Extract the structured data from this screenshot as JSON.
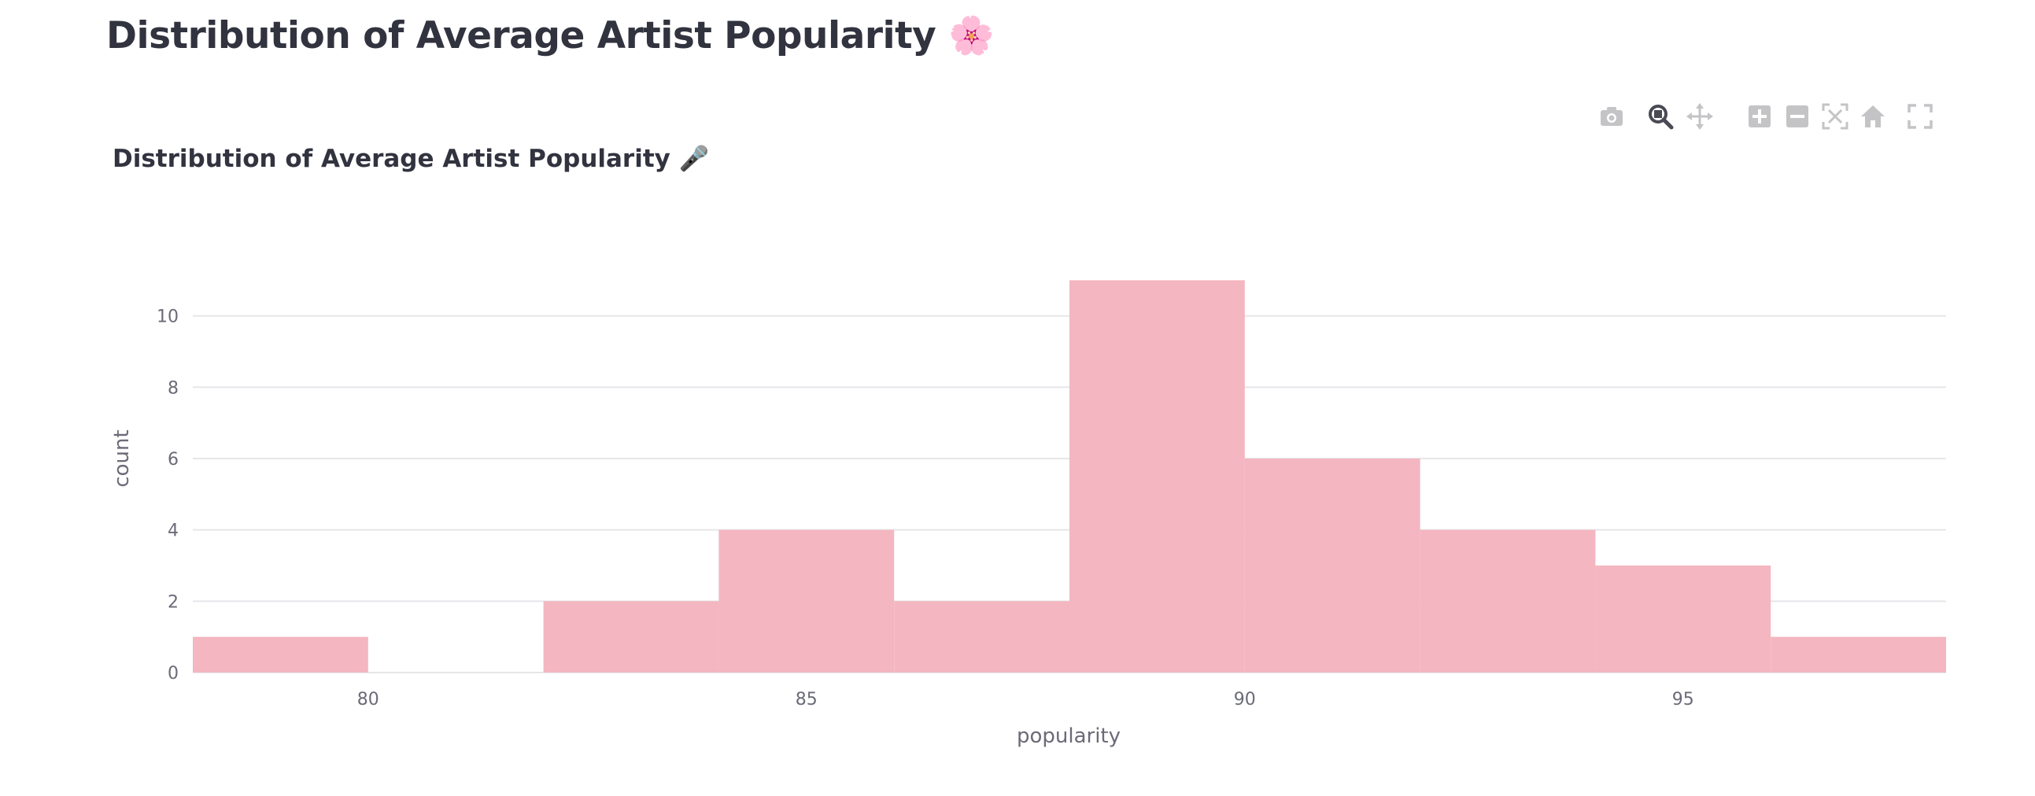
{
  "page": {
    "title": "Distribution of Average Artist Popularity 🌸"
  },
  "modebar": {
    "buttons": [
      {
        "name": "camera-icon",
        "label": "Download plot as a png"
      },
      {
        "name": "zoom-icon",
        "label": "Zoom"
      },
      {
        "name": "pan-icon",
        "label": "Pan"
      },
      {
        "name": "zoom-in-icon",
        "label": "Zoom in"
      },
      {
        "name": "zoom-out-icon",
        "label": "Zoom out"
      },
      {
        "name": "autoscale-icon",
        "label": "Autoscale"
      },
      {
        "name": "home-icon",
        "label": "Reset axes"
      },
      {
        "name": "fullscreen-icon",
        "label": "Fullscreen"
      }
    ],
    "active": "zoom-icon"
  },
  "chart_data": {
    "type": "bar",
    "title": "Distribution of Average Artist Popularity 🎤",
    "xlabel": "popularity",
    "ylabel": "count",
    "bins": [
      {
        "x0": 78,
        "x1": 80,
        "count": 1
      },
      {
        "x0": 80,
        "x1": 82,
        "count": 0
      },
      {
        "x0": 82,
        "x1": 84,
        "count": 2
      },
      {
        "x0": 84,
        "x1": 86,
        "count": 4
      },
      {
        "x0": 86,
        "x1": 88,
        "count": 2
      },
      {
        "x0": 88,
        "x1": 90,
        "count": 11
      },
      {
        "x0": 90,
        "x1": 92,
        "count": 6
      },
      {
        "x0": 92,
        "x1": 94,
        "count": 4
      },
      {
        "x0": 94,
        "x1": 96,
        "count": 3
      },
      {
        "x0": 96,
        "x1": 98,
        "count": 1
      }
    ],
    "xlim": [
      78,
      98
    ],
    "ylim": [
      0,
      11.58
    ],
    "xticks": [
      80,
      85,
      90,
      95
    ],
    "yticks": [
      0,
      2,
      4,
      6,
      8,
      10
    ],
    "bar_color": "#f4b6c0",
    "grid": true,
    "legend": "none"
  }
}
